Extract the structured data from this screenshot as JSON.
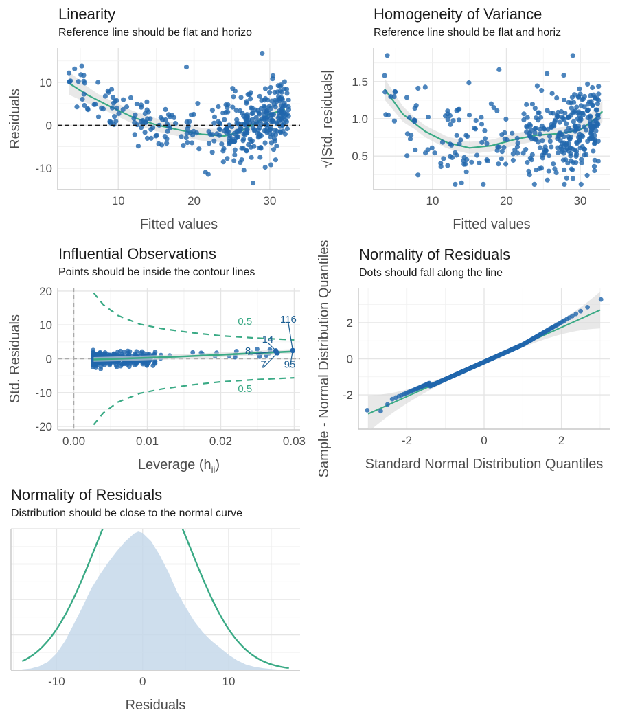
{
  "colors": {
    "points": "#2166ac",
    "smooth": "#3aaa85",
    "band": "#d9d9d9",
    "density_fill": "#c6d8ea",
    "ref_line": "#1a1a1a",
    "dashed_gray": "#aaaaaa"
  },
  "chart_data": [
    {
      "id": "linearity",
      "type": "scatter",
      "title": "Linearity",
      "subtitle": "Reference line should be flat and horizo",
      "xlabel": "Fitted values",
      "ylabel": "Residuals",
      "xlim": [
        2,
        34
      ],
      "ylim": [
        -15,
        18
      ],
      "xticks": [
        10,
        20,
        30
      ],
      "yticks": [
        -10,
        0,
        10
      ],
      "reference_line": 0,
      "smooth": [
        [
          3.5,
          9.8
        ],
        [
          6,
          7.0
        ],
        [
          9,
          4.3
        ],
        [
          12,
          1.8
        ],
        [
          15,
          0.1
        ],
        [
          18,
          -1.1
        ],
        [
          21,
          -2.1
        ],
        [
          24,
          -2.5
        ],
        [
          26,
          -1.6
        ],
        [
          28,
          0.4
        ],
        [
          30,
          2.6
        ],
        [
          32,
          3.7
        ]
      ],
      "band_halfwidth": 1.5
    },
    {
      "id": "homogeneity",
      "type": "scatter",
      "title": "Homogeneity of Variance",
      "subtitle": "Reference line should be flat and horiz",
      "xlabel": "Fitted values",
      "ylabel": "√|Std. residuals|",
      "xlim": [
        2,
        34
      ],
      "ylim": [
        0.05,
        1.95
      ],
      "xticks": [
        10,
        20,
        30
      ],
      "yticks": [
        0.5,
        1.0,
        1.5
      ],
      "ytick_labels": [
        "0.5",
        "1.0",
        "1.5"
      ],
      "smooth": [
        [
          3.5,
          1.4
        ],
        [
          6,
          1.06
        ],
        [
          9,
          0.83
        ],
        [
          12,
          0.68
        ],
        [
          15,
          0.61
        ],
        [
          18,
          0.64
        ],
        [
          21,
          0.72
        ],
        [
          24,
          0.78
        ],
        [
          27,
          0.8
        ],
        [
          30,
          0.85
        ],
        [
          32,
          1.0
        ],
        [
          33,
          1.1
        ]
      ],
      "band_halfwidth": 0.08
    },
    {
      "id": "influential",
      "type": "scatter",
      "title": "Influential Observations",
      "subtitle": "Points should be inside the contour lines",
      "xlabel": "Leverage (h",
      "xlabel_sub": "ii",
      "xlabel_close": ")",
      "ylabel": "Std. Residuals",
      "xlim": [
        -0.0022,
        0.0308
      ],
      "ylim": [
        -21,
        21
      ],
      "xticks": [
        0.0,
        0.01,
        0.02,
        0.03
      ],
      "xtick_labels": [
        "0.00",
        "0.01",
        "0.02",
        "0.03"
      ],
      "yticks": [
        -20,
        -10,
        0,
        10,
        20
      ],
      "contour_upper": [
        [
          0.0027,
          19.5
        ],
        [
          0.004,
          16.0
        ],
        [
          0.006,
          12.8
        ],
        [
          0.009,
          10.2
        ],
        [
          0.012,
          8.9
        ],
        [
          0.016,
          7.7
        ],
        [
          0.02,
          6.8
        ],
        [
          0.025,
          6.1
        ],
        [
          0.03,
          5.6
        ]
      ],
      "contour_lower": [
        [
          0.0027,
          -19.5
        ],
        [
          0.004,
          -16.0
        ],
        [
          0.006,
          -12.8
        ],
        [
          0.009,
          -10.2
        ],
        [
          0.012,
          -8.9
        ],
        [
          0.016,
          -7.7
        ],
        [
          0.02,
          -6.8
        ],
        [
          0.025,
          -6.1
        ],
        [
          0.03,
          -5.6
        ]
      ],
      "contour_labels": [
        {
          "text": "0.5",
          "x": 0.0233,
          "y": 10.0
        },
        {
          "text": "0.5",
          "x": 0.0233,
          "y": -9.8
        }
      ],
      "smooth": [
        [
          0.0027,
          -0.2
        ],
        [
          0.006,
          0.0
        ],
        [
          0.01,
          0.3
        ],
        [
          0.015,
          0.7
        ],
        [
          0.02,
          1.2
        ],
        [
          0.025,
          1.7
        ],
        [
          0.03,
          2.2
        ]
      ],
      "highlighted": [
        {
          "label": "116",
          "x": 0.0298,
          "y": 2.5,
          "lx": 0.0292,
          "ly": 11.5
        },
        {
          "label": "14",
          "x": 0.0275,
          "y": 2.4,
          "lx": 0.0264,
          "ly": 5.6
        },
        {
          "label": "8",
          "x": 0.0275,
          "y": 2.2,
          "lx": 0.0237,
          "ly": 2.1
        },
        {
          "label": "7",
          "x": 0.0277,
          "y": 1.7,
          "lx": 0.0258,
          "ly": -1.8
        },
        {
          "label": "95",
          "x": 0.0298,
          "y": 2.4,
          "lx": 0.0294,
          "ly": -1.8
        }
      ]
    },
    {
      "id": "qq",
      "type": "scatter",
      "title": "Normality of Residuals",
      "subtitle": "Dots should fall along the line",
      "xlabel": "Standard Normal Distribution Quantiles",
      "ylabel": "Sample - Normal Distribution Quantiles",
      "xlim": [
        -3.25,
        3.25
      ],
      "ylim": [
        -3.9,
        3.9
      ],
      "xticks": [
        -2,
        0,
        2
      ],
      "yticks": [
        -2,
        0,
        2
      ],
      "reference": [
        [
          -3.0,
          -3.05
        ],
        [
          3.0,
          2.7
        ]
      ]
    },
    {
      "id": "density",
      "type": "area",
      "title": "Normality of Residuals",
      "subtitle": "Distribution should be close to the normal curve",
      "xlabel": "Residuals",
      "xlim": [
        -15.3,
        18.3
      ],
      "ylim": [
        0,
        0.0505
      ],
      "xticks": [
        -10,
        0,
        10
      ],
      "density": [
        [
          -14,
          0.0003
        ],
        [
          -13,
          0.0006
        ],
        [
          -12,
          0.0014
        ],
        [
          -11,
          0.003
        ],
        [
          -10,
          0.006
        ],
        [
          -9,
          0.0105
        ],
        [
          -8,
          0.0165
        ],
        [
          -7,
          0.0225
        ],
        [
          -6,
          0.029
        ],
        [
          -5,
          0.034
        ],
        [
          -4,
          0.0385
        ],
        [
          -3,
          0.0425
        ],
        [
          -2,
          0.046
        ],
        [
          -1,
          0.0488
        ],
        [
          -0.5,
          0.0495
        ],
        [
          0,
          0.049
        ],
        [
          1,
          0.046
        ],
        [
          2,
          0.041
        ],
        [
          3,
          0.035
        ],
        [
          4,
          0.028
        ],
        [
          5,
          0.0225
        ],
        [
          6,
          0.0175
        ],
        [
          7,
          0.0135
        ],
        [
          8,
          0.0105
        ],
        [
          9,
          0.008
        ],
        [
          10,
          0.0055
        ],
        [
          11,
          0.0035
        ],
        [
          12,
          0.002
        ],
        [
          13,
          0.0012
        ],
        [
          14,
          0.0007
        ],
        [
          15,
          0.0004
        ],
        [
          16,
          0.0002
        ],
        [
          17,
          0.0001
        ]
      ],
      "normal_mean": 0,
      "normal_sd": 5.63
    }
  ]
}
